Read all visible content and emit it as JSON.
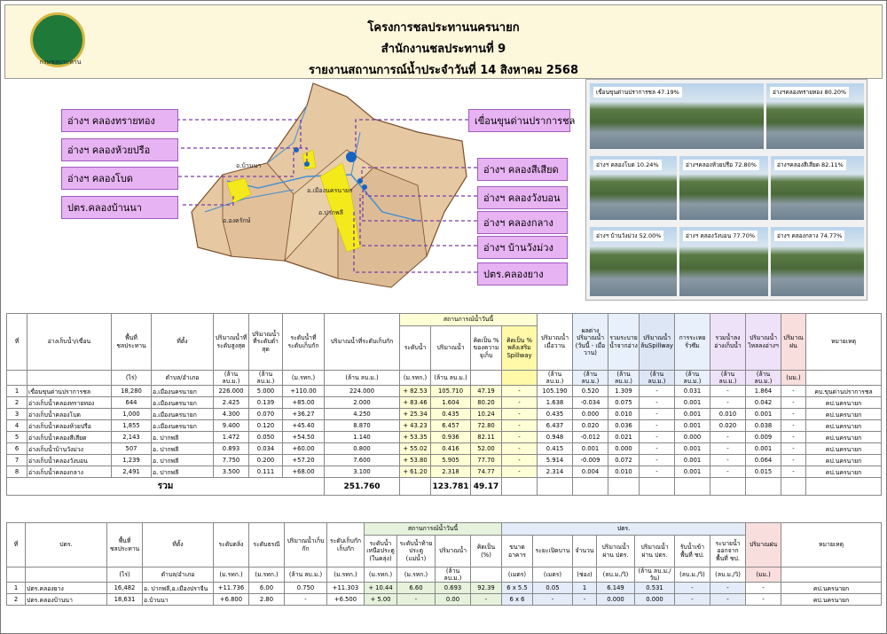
{
  "header": {
    "logo_text": "กรมชลประทาน",
    "lines": [
      "โครงการชลประทานนครนายก",
      "สำนักงานชลประทานที่ 9",
      "รายงานสถานการณ์น้ำประจำวันที่  14  สิงหาคม  2568"
    ]
  },
  "map": {
    "left_labels": [
      "อ่างฯ คลองทรายทอง",
      "อ่างฯ คลองห้วยปรือ",
      "อ่างฯ คลองโบด",
      "ปตร.คลองบ้านนา"
    ],
    "right_labels": [
      "เขื่อนขุนด่านปราการชล",
      "อ่างฯ คลองสีเสียด",
      "อ่างฯ คลองวังบอน",
      "อ่างฯ คลองกลาง",
      "อ่างฯ บ้านวังม่วง",
      "ปตร.คลองยาง"
    ],
    "districts": [
      "อ.บ้านนา",
      "อ.เมืองนครนายก",
      "อ.ปากพลี",
      "อ.องครักษ์"
    ]
  },
  "photos": [
    "เขื่อนขุนด่านปราการชล 47.19%",
    "อ่างฯคลองทรายทอง 80.20%",
    "อ่างฯ คลองโบด 10.24%",
    "อ่างฯคลองห้วยปรือ 72.80%",
    "อ่างฯคลองสีเสียด 82.11%",
    "อ่างฯ บ้านวังม่วง 52.00%",
    "อ่างฯ คลองวังบอน 77.70%",
    "อ่างฯ คลองกลาง 74.77%"
  ],
  "table1": {
    "group": "สถานการณ์น้ำวันนี้",
    "columns": [
      {
        "label": "ที่"
      },
      {
        "label": "อ่างเก็บน้ำ/เขื่อน"
      },
      {
        "label": "พื้นที่ชลประทาน",
        "unit": "(ไร่)"
      },
      {
        "label": "ที่ตั้ง",
        "unit": "ตำบล/อำเภอ"
      },
      {
        "label": "ปริมาณน้ำที่ระดับสูงสุด",
        "unit": "(ล้าน ลบ.ม.)"
      },
      {
        "label": "ปริมาณน้ำที่ระดับต่ำสุด",
        "unit": "(ล้าน ลบ.ม.)"
      },
      {
        "label": "ระดับน้ำที่ระดับเก็บกัก",
        "unit": "(ม.รทก.)"
      },
      {
        "label": "ปริมาณน้ำที่ระดับเก็บกัก",
        "unit": "(ล้าน ลบ.ม.)"
      },
      {
        "label": "ระดับน้ำ",
        "unit": "(ม.รทก.)"
      },
      {
        "label": "ปริมาณน้ำ",
        "unit": "(ล้าน ลบ.ม.)"
      },
      {
        "label": "คิดเป็น % ของความจุเก็บ"
      },
      {
        "label": "คิดเป็น % พลังเสริม Spillway"
      },
      {
        "label": "ปริมาณน้ำเมื่อวาน",
        "unit": "(ล้าน ลบ.ม.)"
      },
      {
        "label": "ผลต่างปริมาณน้ำ (วันนี้ - เมื่อวาน)",
        "unit": "(ล้าน ลบ.ม.)"
      },
      {
        "label": "รวมระบายน้ำจากอ่าง",
        "unit": "(ล้าน ลบ.ม.)"
      },
      {
        "label": "ปริมาณน้ำล้นSpillway",
        "unit": "(ล้าน ลบ.ม.)"
      },
      {
        "label": "การระเหยรั่วซึม",
        "unit": "(ล้าน ลบ.ม.)"
      },
      {
        "label": "รวมน้ำลงอ่างเก็บน้ำ",
        "unit": "(ล้าน ลบ.ม.)"
      },
      {
        "label": "ปริมาณน้ำไหลลงอ่างฯ",
        "unit": "(ล้าน ลบ.ม.)"
      },
      {
        "label": "ปริมาณฝน",
        "unit": "(มม.)"
      },
      {
        "label": "หมายเหตุ"
      }
    ],
    "rows": [
      [
        "1",
        "เขื่อนขุนด่านปราการชล",
        "18,280",
        "อ.เมืองนครนายก",
        "226.000",
        "5.000",
        "+110.00",
        "224.000",
        "+ 82.53",
        "105.710",
        "47.19",
        "-",
        "105.190",
        "0.520",
        "1.309",
        "-",
        "0.031",
        "-",
        "1.864",
        "-",
        "คบ.ขุนด่านปราการชล"
      ],
      [
        "2",
        "อ่างเก็บน้ำคลองทรายทอง",
        "644",
        "อ.เมืองนครนายก",
        "2.425",
        "0.139",
        "+85.00",
        "2.000",
        "+ 83.46",
        "1.604",
        "80.20",
        "-",
        "1.638",
        "-0.034",
        "0.075",
        "-",
        "0.001",
        "-",
        "0.042",
        "-",
        "คป.นครนายก"
      ],
      [
        "3",
        "อ่างเก็บน้ำคลองโบด",
        "1,000",
        "อ.เมืองนครนายก",
        "4.300",
        "0.070",
        "+36.27",
        "4.250",
        "+ 25.34",
        "0.435",
        "10.24",
        "-",
        "0.435",
        "0.000",
        "0.010",
        "-",
        "0.001",
        "0.010",
        "0.001",
        "-",
        "คป.นครนายก"
      ],
      [
        "4",
        "อ่างเก็บน้ำคลองห้วยปรือ",
        "1,855",
        "อ.เมืองนครนายก",
        "9.400",
        "0.120",
        "+45.40",
        "8.870",
        "+ 43.23",
        "6.457",
        "72.80",
        "-",
        "6.437",
        "0.020",
        "0.036",
        "-",
        "0.001",
        "0.020",
        "0.038",
        "-",
        "คป.นครนายก"
      ],
      [
        "5",
        "อ่างเก็บน้ำคลองสีเสียด",
        "2,143",
        "อ. ปากพลี",
        "1.472",
        "0.050",
        "+54.50",
        "1.140",
        "+ 53.35",
        "0.936",
        "82.11",
        "-",
        "0.948",
        "-0.012",
        "0.021",
        "-",
        "0.000",
        "-",
        "0.009",
        "-",
        "คป.นครนายก"
      ],
      [
        "6",
        "อ่างเก็บน้ำบ้านวังม่วง",
        "507",
        "อ. ปากพลี",
        "0.893",
        "0.034",
        "+60.00",
        "0.800",
        "+ 55.02",
        "0.416",
        "52.00",
        "-",
        "0.415",
        "0.001",
        "0.000",
        "-",
        "0.001",
        "-",
        "0.001",
        "-",
        "คป.นครนายก"
      ],
      [
        "7",
        "อ่างเก็บน้ำคลองวังบอน",
        "1,239",
        "อ. ปากพลี",
        "7.750",
        "0.200",
        "+57.20",
        "7.600",
        "+ 53.80",
        "5.905",
        "77.70",
        "-",
        "5.914",
        "-0.009",
        "0.072",
        "-",
        "0.001",
        "-",
        "0.064",
        "-",
        "คป.นครนายก"
      ],
      [
        "8",
        "อ่างเก็บน้ำคลองกลาง",
        "2,491",
        "อ. ปากพลี",
        "3.500",
        "0.111",
        "+68.00",
        "3.100",
        "+ 61.20",
        "2.318",
        "74.77",
        "-",
        "2.314",
        "0.004",
        "0.010",
        "-",
        "0.001",
        "-",
        "0.015",
        "-",
        "คป.นครนายก"
      ]
    ],
    "total": {
      "label": "รวม",
      "storage": "251.760",
      "volume": "123.781",
      "percent": "49.17"
    }
  },
  "table2": {
    "groups": [
      "สถานการณ์น้ำวันนี้",
      "ปตร."
    ],
    "columns": [
      {
        "label": "ที่"
      },
      {
        "label": "ปตร."
      },
      {
        "label": "พื้นที่ชลประทาน",
        "unit": "(ไร่)"
      },
      {
        "label": "ที่ตั้ง",
        "unit": "ตำบล/อำเภอ"
      },
      {
        "label": "ระดับตลิ่ง",
        "unit": "(ม.รทก.)"
      },
      {
        "label": "ระดับธรณี",
        "unit": "(ม.รทก.)"
      },
      {
        "label": "ปริมาณน้ำเก็บกัก",
        "unit": "(ล้าน ลบ.ม.)"
      },
      {
        "label": "ระดับเก็บกัก เก็บกัก",
        "unit": "(ม.รทก.)"
      },
      {
        "label": "ระดับน้ำเหนือประตู (ในคลุ่ง)",
        "unit": "(ม.รทก.)"
      },
      {
        "label": "ระดับน้ำท้ายประตู (แม่น้ำ)",
        "unit": "(ม.รทก.)"
      },
      {
        "label": "ปริมาณน้ำ",
        "unit": "(ล้าน ลบ.ม.)"
      },
      {
        "label": "คิดเป็น (%)"
      },
      {
        "label": "ขนาดอาคาร",
        "unit": "(เมตร)"
      },
      {
        "label": "ระยะเปิดบาน",
        "unit": "(เมตร)"
      },
      {
        "label": "จำนวน",
        "unit": "(ช่อง)"
      },
      {
        "label": "ปริมาณน้ำผ่าน ปตร.",
        "unit": "(ลบ.ม./วิ)"
      },
      {
        "label": "ปริมาณน้ำผ่าน ปตร.",
        "unit": "(ล้าน ลบ.ม./วัน)"
      },
      {
        "label": "รับน้ำเข้าพื้นที่ ชป.",
        "unit": "(ลบ.ม./วิ)"
      },
      {
        "label": "ระบายน้ำออกจากพื้นที่ ชป.",
        "unit": "(ลบ.ม./วิ)"
      },
      {
        "label": "ปริมาณฝน",
        "unit": "(มม.)"
      },
      {
        "label": "หมายเหตุ"
      }
    ],
    "rows": [
      [
        "1",
        "ปตร.คลองยาง",
        "16,482",
        "อ. ปากพลี,อ.เมืองปราจีน",
        "+11.736",
        "6.00",
        "0.750",
        "+11.303",
        "+ 10.44",
        "6.60",
        "0.693",
        "92.39",
        "6 x 5.5",
        "0.05",
        "1",
        "6.149",
        "0.531",
        "-",
        "-",
        "-",
        "คป.นครนายก"
      ],
      [
        "2",
        "ปตร.คลองบ้านนา",
        "18,631",
        "อ.บ้านนา",
        "+6.800",
        "2.80",
        "-",
        "+6.500",
        "+ 5.00",
        "-",
        "0.00",
        "-",
        "6 x 6",
        "-",
        "-",
        "0.000",
        "0.000",
        "-",
        "-",
        "-",
        "คป.นครนายก"
      ]
    ]
  }
}
